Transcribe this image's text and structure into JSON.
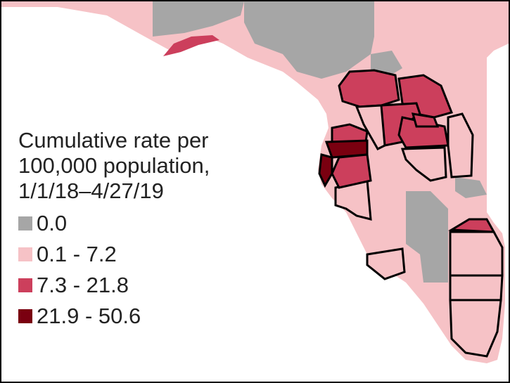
{
  "legend": {
    "title_lines": [
      "Cumulative rate per",
      "100,000 population,",
      "1/1/18–4/27/19"
    ],
    "items": [
      {
        "label": "0.0",
        "color": "#a6a6a6"
      },
      {
        "label": "0.1 - 7.2",
        "color": "#f6c2c6"
      },
      {
        "label": "7.3 - 21.8",
        "color": "#cc3f5c"
      },
      {
        "label": "21.9 - 50.6",
        "color": "#7a0010"
      }
    ]
  },
  "map": {
    "region_colors": {
      "zero": "#a6a6a6",
      "low": "#f6c2c6",
      "mid": "#cc3f5c",
      "high": "#7a0010",
      "water": "#ffffff",
      "outline": "#000000"
    }
  }
}
